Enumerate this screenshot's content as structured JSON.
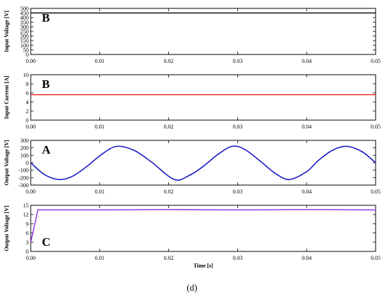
{
  "caption": "(d)",
  "chart_data": [
    {
      "type": "line",
      "panel_label": "B",
      "ylabel": "Input Voltage [V]",
      "xlabel": "",
      "xlim": [
        0,
        0.05
      ],
      "ylim": [
        0,
        500
      ],
      "x_ticks": [
        "0.00",
        "0.01",
        "0.02",
        "0.03",
        "0.04",
        "0.05"
      ],
      "y_ticks": [
        "0",
        "50",
        "100",
        "150",
        "200",
        "250",
        "300",
        "350",
        "400",
        "450",
        "500"
      ],
      "color": "#000000",
      "x": [
        0,
        0.05
      ],
      "y": [
        450,
        450
      ]
    },
    {
      "type": "line",
      "panel_label": "B",
      "ylabel": "Input Current [A]",
      "xlabel": "",
      "xlim": [
        0,
        0.05
      ],
      "ylim": [
        0,
        10
      ],
      "x_ticks": [
        "0.00",
        "0.01",
        "0.02",
        "0.03",
        "0.04",
        "0.05"
      ],
      "y_ticks": [
        "0",
        "2",
        "4",
        "6",
        "8",
        "10"
      ],
      "color": "#e8141b",
      "x": [
        0,
        0.05
      ],
      "y": [
        5.6,
        5.6
      ]
    },
    {
      "type": "line",
      "panel_label": "A",
      "ylabel": "Output Voltage [V]",
      "xlabel": "",
      "xlim": [
        0,
        0.05
      ],
      "ylim": [
        -300,
        300
      ],
      "x_ticks": [
        "0.00",
        "0.01",
        "0.02",
        "0.03",
        "0.04",
        "0.05"
      ],
      "y_ticks": [
        "-300",
        "-200",
        "-100",
        "0",
        "100",
        "200",
        "300"
      ],
      "color": "#1a1ac8",
      "x": [
        0,
        0.002,
        0.0041,
        0.006,
        0.008,
        0.0104,
        0.0125,
        0.015,
        0.0175,
        0.0208,
        0.023,
        0.025,
        0.0271,
        0.0292,
        0.031,
        0.0333,
        0.0354,
        0.0375,
        0.04,
        0.0417,
        0.0438,
        0.0458,
        0.048,
        0.05
      ],
      "y": [
        0,
        -160,
        -225,
        -185,
        -60,
        120,
        220,
        165,
        10,
        -225,
        -170,
        -50,
        110,
        220,
        180,
        20,
        -140,
        -225,
        -120,
        30,
        170,
        220,
        150,
        0
      ]
    },
    {
      "type": "line",
      "panel_label": "C",
      "ylabel": "Output Voltage [V]",
      "xlabel": "Time [s]",
      "xlim": [
        0,
        0.05
      ],
      "ylim": [
        0,
        15
      ],
      "x_ticks": [
        "0.00",
        "0.01",
        "0.02",
        "0.03",
        "0.04",
        "0.05"
      ],
      "y_ticks": [
        "0",
        "3",
        "6",
        "9",
        "12",
        "15"
      ],
      "color": "#8a2be2",
      "x": [
        0,
        0.0003,
        0.0006,
        0.0009,
        0.001,
        0.01,
        0.02,
        0.03,
        0.04,
        0.05
      ],
      "y": [
        3,
        6,
        9,
        12,
        13.5,
        13.5,
        13.6,
        13.5,
        13.6,
        13.5
      ]
    }
  ]
}
